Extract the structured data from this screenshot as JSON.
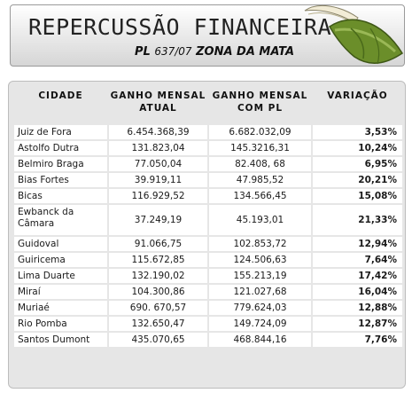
{
  "header": {
    "title": "REPERCUSSÃO FINANCEIRA",
    "subtitle_prefix": "PL",
    "subtitle_number": "637/07",
    "subtitle_region": "ZONA DA MATA"
  },
  "table": {
    "columns": [
      "CIDADE",
      "GANHO MENSAL ATUAL",
      "GANHO MENSAL COM PL",
      "VARIAÇÃO"
    ],
    "rows": [
      {
        "cidade": "Juiz de Fora",
        "atual": "6.454.368,39",
        "com_pl": "6.682.032,09",
        "variacao": "3,53%"
      },
      {
        "cidade": "Astolfo Dutra",
        "atual": "131.823,04",
        "com_pl": "145.3216,31",
        "variacao": "10,24%"
      },
      {
        "cidade": "Belmiro Braga",
        "atual": "77.050,04",
        "com_pl": "82.408, 68",
        "variacao": "6,95%"
      },
      {
        "cidade": "Bias Fortes",
        "atual": "39.919,11",
        "com_pl": "47.985,52",
        "variacao": "20,21%"
      },
      {
        "cidade": "Bicas",
        "atual": "116.929,52",
        "com_pl": "134.566,45",
        "variacao": "15,08%"
      },
      {
        "cidade": "Ewbanck da Câmara",
        "atual": "37.249,19",
        "com_pl": "45.193,01",
        "variacao": "21,33%"
      },
      {
        "cidade": "Guidoval",
        "atual": "91.066,75",
        "com_pl": "102.853,72",
        "variacao": "12,94%"
      },
      {
        "cidade": "Guiricema",
        "atual": "115.672,85",
        "com_pl": "124.506,63",
        "variacao": "7,64%"
      },
      {
        "cidade": "Lima Duarte",
        "atual": "132.190,02",
        "com_pl": "155.213,19",
        "variacao": "17,42%"
      },
      {
        "cidade": "Miraí",
        "atual": "104.300,86",
        "com_pl": "121.027,68",
        "variacao": "16,04%"
      },
      {
        "cidade": "Muriaé",
        "atual": "690. 670,57",
        "com_pl": "779.624,03",
        "variacao": "12,88%"
      },
      {
        "cidade": "Rio Pomba",
        "atual": "132.650,47",
        "com_pl": "149.724,09",
        "variacao": "12,87%"
      },
      {
        "cidade": "Santos Dumont",
        "atual": "435.070,65",
        "com_pl": "468.844,16",
        "variacao": "7,76%"
      }
    ]
  },
  "colors": {
    "panel_bg": "#e6e6e6",
    "hat_green": "#6b8e2a",
    "feather": "#f2ecd6"
  },
  "icons": {
    "header_decoration": "feathered-hat-icon"
  }
}
